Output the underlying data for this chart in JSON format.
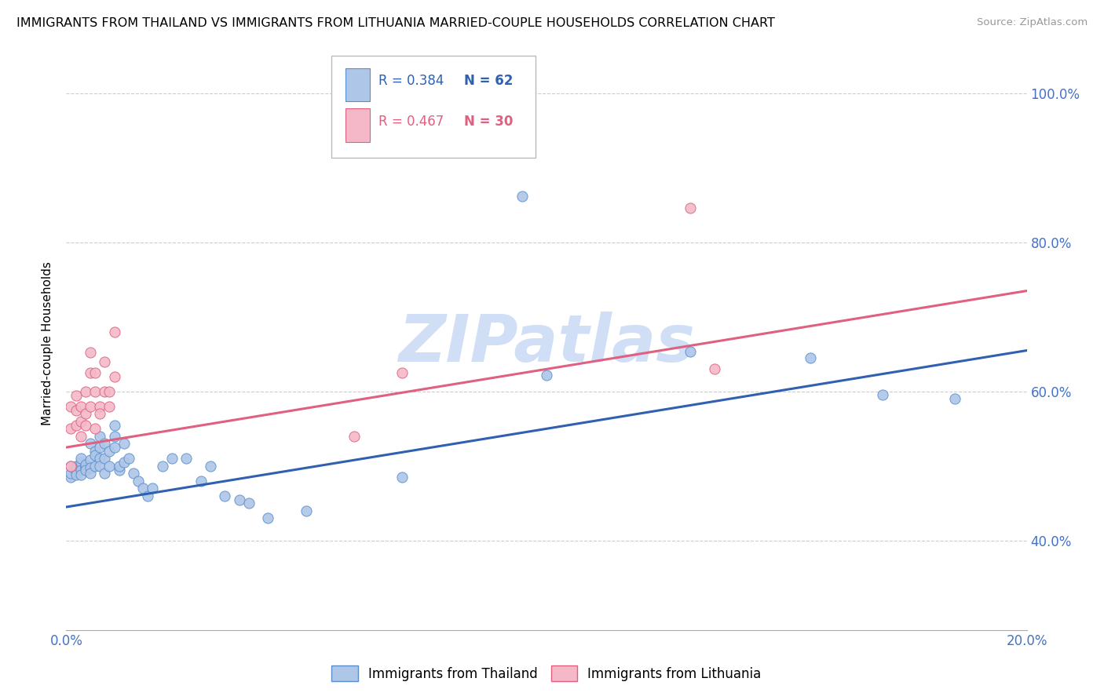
{
  "title": "IMMIGRANTS FROM THAILAND VS IMMIGRANTS FROM LITHUANIA MARRIED-COUPLE HOUSEHOLDS CORRELATION CHART",
  "source": "Source: ZipAtlas.com",
  "ylabel": "Married-couple Households",
  "legend_label_thailand": "Immigrants from Thailand",
  "legend_label_lithuania": "Immigrants from Lithuania",
  "color_thailand_fill": "#aec6e8",
  "color_thailand_edge": "#5a8fcb",
  "color_lithuania_fill": "#f4b8c8",
  "color_lithuania_edge": "#e06080",
  "color_axis_labels": "#4472c4",
  "color_trend_thailand": "#3060b0",
  "color_trend_lithuania": "#e06080",
  "color_watermark": "#d0dff5",
  "color_grid": "#cccccc",
  "watermark_text": "ZIPatlas",
  "thailand_x": [
    0.001,
    0.001,
    0.001,
    0.002,
    0.002,
    0.002,
    0.002,
    0.003,
    0.003,
    0.003,
    0.003,
    0.003,
    0.004,
    0.004,
    0.004,
    0.004,
    0.005,
    0.005,
    0.005,
    0.005,
    0.006,
    0.006,
    0.006,
    0.007,
    0.007,
    0.007,
    0.007,
    0.008,
    0.008,
    0.008,
    0.009,
    0.009,
    0.01,
    0.01,
    0.01,
    0.011,
    0.011,
    0.012,
    0.012,
    0.013,
    0.014,
    0.015,
    0.016,
    0.017,
    0.018,
    0.02,
    0.022,
    0.025,
    0.028,
    0.03,
    0.033,
    0.036,
    0.038,
    0.042,
    0.05,
    0.07,
    0.095,
    0.1,
    0.13,
    0.155,
    0.17,
    0.185
  ],
  "thailand_y": [
    0.485,
    0.49,
    0.5,
    0.492,
    0.497,
    0.5,
    0.488,
    0.5,
    0.505,
    0.495,
    0.488,
    0.51,
    0.5,
    0.498,
    0.502,
    0.495,
    0.53,
    0.508,
    0.498,
    0.49,
    0.52,
    0.515,
    0.5,
    0.54,
    0.525,
    0.51,
    0.5,
    0.49,
    0.51,
    0.53,
    0.52,
    0.5,
    0.555,
    0.525,
    0.54,
    0.495,
    0.5,
    0.505,
    0.53,
    0.51,
    0.49,
    0.48,
    0.47,
    0.46,
    0.47,
    0.5,
    0.51,
    0.51,
    0.48,
    0.5,
    0.46,
    0.455,
    0.45,
    0.43,
    0.44,
    0.485,
    0.862,
    0.622,
    0.654,
    0.645,
    0.596,
    0.59
  ],
  "lithuania_x": [
    0.001,
    0.001,
    0.001,
    0.002,
    0.002,
    0.002,
    0.003,
    0.003,
    0.003,
    0.004,
    0.004,
    0.004,
    0.005,
    0.005,
    0.005,
    0.006,
    0.006,
    0.006,
    0.007,
    0.007,
    0.008,
    0.008,
    0.009,
    0.009,
    0.01,
    0.01,
    0.06,
    0.07,
    0.13,
    0.135
  ],
  "lithuania_y": [
    0.5,
    0.55,
    0.58,
    0.575,
    0.595,
    0.555,
    0.56,
    0.54,
    0.58,
    0.555,
    0.57,
    0.6,
    0.625,
    0.652,
    0.58,
    0.6,
    0.625,
    0.55,
    0.58,
    0.57,
    0.64,
    0.6,
    0.58,
    0.6,
    0.68,
    0.62,
    0.54,
    0.625,
    0.846,
    0.63
  ],
  "trend_thailand_x0": 0.0,
  "trend_thailand_y0": 0.445,
  "trend_thailand_x1": 0.2,
  "trend_thailand_y1": 0.655,
  "trend_lithuania_x0": 0.0,
  "trend_lithuania_y0": 0.525,
  "trend_lithuania_x1": 0.2,
  "trend_lithuania_y1": 0.735,
  "xlim": [
    0.0,
    0.2
  ],
  "ylim": [
    0.28,
    1.05
  ],
  "x_ticks": [
    0.0,
    0.02,
    0.04,
    0.06,
    0.08,
    0.1,
    0.12,
    0.14,
    0.16,
    0.18,
    0.2
  ],
  "y_ticks": [
    0.4,
    0.6,
    0.8,
    1.0
  ],
  "y_tick_labels": [
    "40.0%",
    "60.0%",
    "80.0%",
    "100.0%"
  ]
}
